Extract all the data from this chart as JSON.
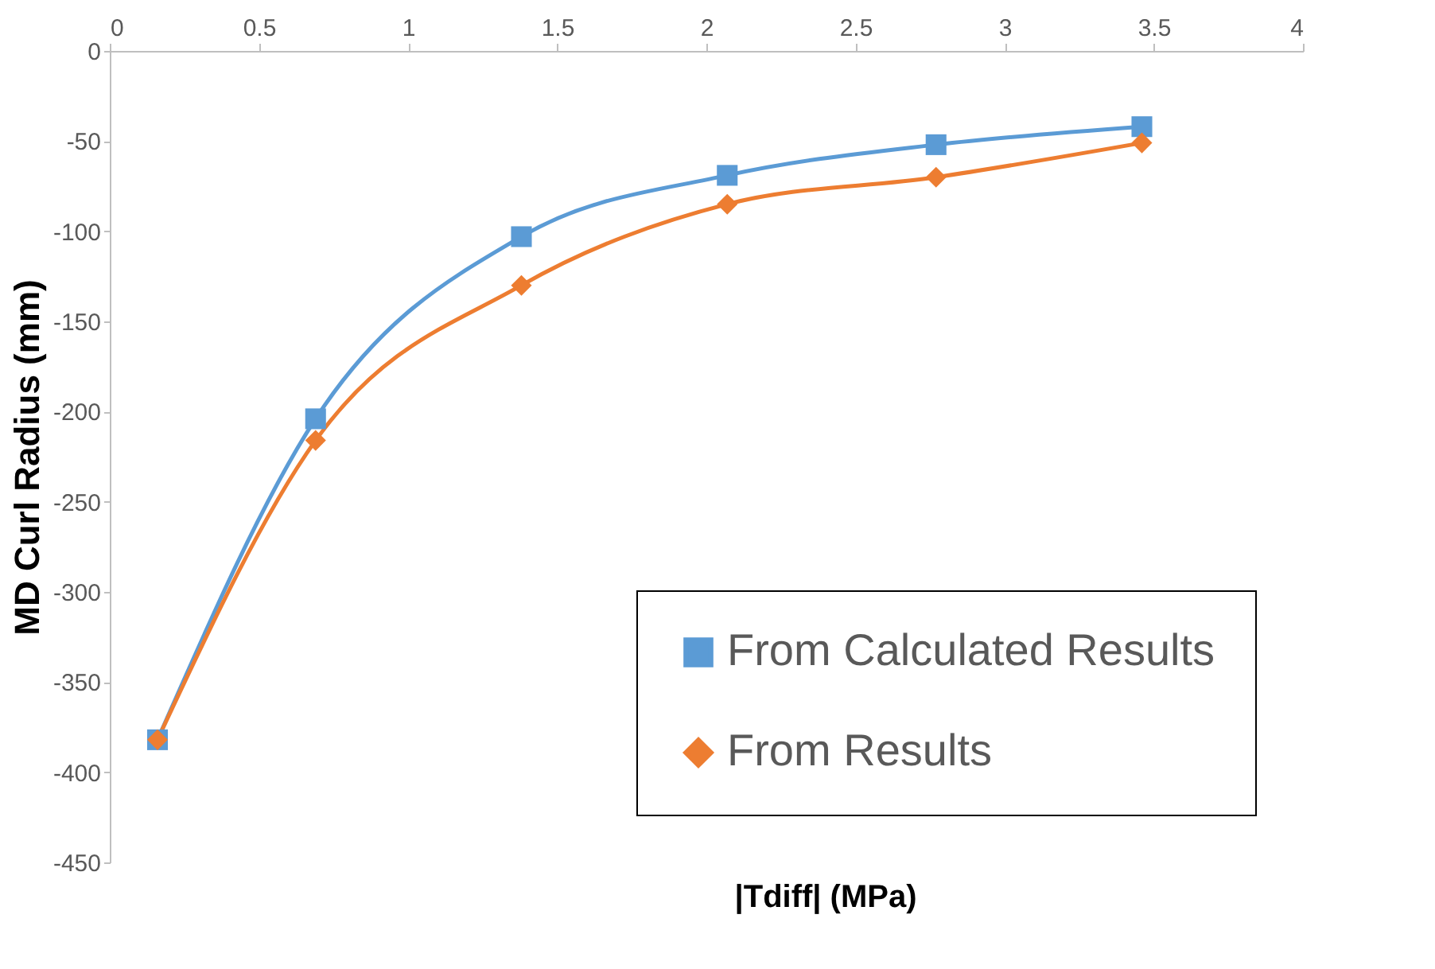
{
  "chart_data": {
    "type": "line",
    "xlabel": "|Tdiff| (MPa)",
    "ylabel": "MD Curl Radius (mm)",
    "x": [
      0.16,
      0.69,
      1.38,
      2.07,
      2.77,
      3.46
    ],
    "series": [
      {
        "name": "From Calculated Results",
        "color": "#5b9bd5",
        "marker": "square",
        "values": [
          -382,
          -204,
          -103,
          -69,
          -52,
          -42
        ]
      },
      {
        "name": "From Results",
        "color": "#ed7d31",
        "marker": "diamond",
        "values": [
          -382,
          -216,
          -130,
          -85,
          -70,
          -51
        ]
      }
    ],
    "xlim": [
      0,
      4
    ],
    "xticks": [
      0,
      0.5,
      1,
      1.5,
      2,
      2.5,
      3,
      3.5,
      4
    ],
    "ylim": [
      -450,
      0
    ],
    "yticks": [
      -450,
      -400,
      -350,
      -300,
      -250,
      -200,
      -150,
      -100,
      -50,
      0
    ],
    "grid": false,
    "legend": "bottom right",
    "line_style": "solid"
  }
}
